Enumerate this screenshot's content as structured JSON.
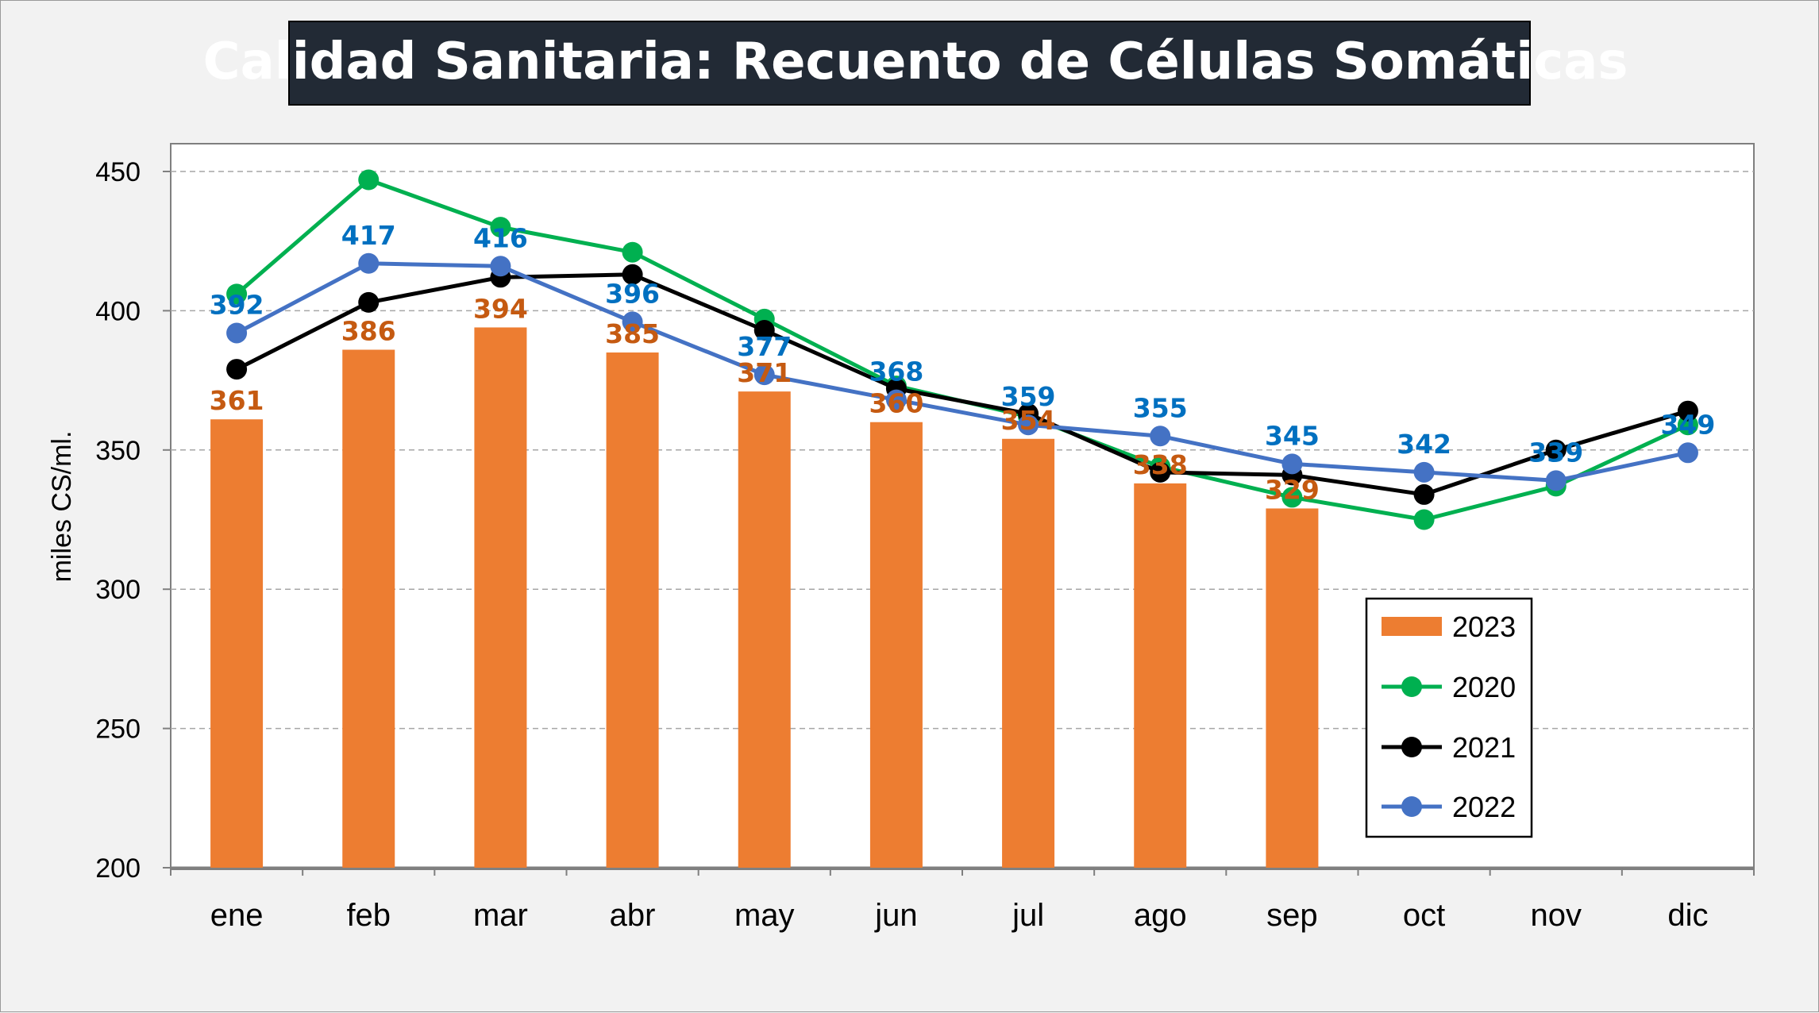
{
  "chart_data": {
    "type": "bar",
    "title": "Calidad Sanitaria: Recuento de Células Somáticas",
    "ylabel": "miles CS/ml.",
    "xlabel": "",
    "ylim": [
      200,
      450
    ],
    "yticks": [
      200,
      250,
      300,
      350,
      400,
      450
    ],
    "grid": true,
    "legend_position": "bottom-right",
    "categories": [
      "ene",
      "feb",
      "mar",
      "abr",
      "may",
      "jun",
      "jul",
      "ago",
      "sep",
      "oct",
      "nov",
      "dic"
    ],
    "bars": {
      "name": "2023",
      "type": "bar",
      "color": "#ed7d31",
      "label_color": "#c55a11",
      "values": [
        361,
        386,
        394,
        385,
        371,
        360,
        354,
        338,
        329,
        null,
        null,
        null
      ]
    },
    "series": [
      {
        "name": "2020",
        "type": "line",
        "color": "#00b050",
        "values": [
          406,
          447,
          430,
          421,
          397,
          373,
          362,
          344,
          333,
          325,
          337,
          359
        ]
      },
      {
        "name": "2021",
        "type": "line",
        "color": "#000000",
        "values": [
          379,
          403,
          412,
          413,
          393,
          372,
          363,
          342,
          341,
          334,
          350,
          364
        ]
      },
      {
        "name": "2022",
        "type": "line",
        "color": "#4472c4",
        "label_color": "#0070c0",
        "values": [
          392,
          417,
          416,
          396,
          377,
          368,
          359,
          355,
          345,
          342,
          339,
          349
        ]
      }
    ],
    "legend": [
      "2023",
      "2020",
      "2021",
      "2022"
    ]
  }
}
